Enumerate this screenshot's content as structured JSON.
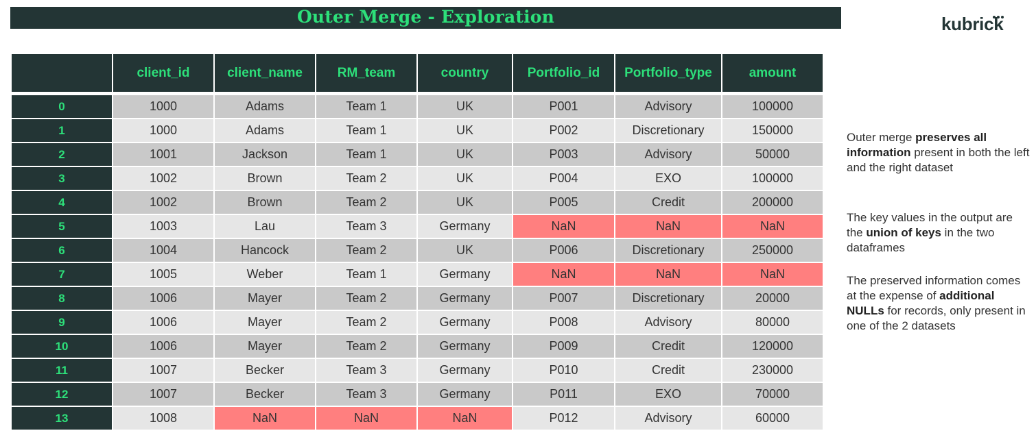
{
  "title": "Outer Merge - Exploration",
  "logo": {
    "text": "kubrick"
  },
  "colors": {
    "dark": "#233535",
    "accent": "#2de07a",
    "nan": "#ff7f7f",
    "row_dark": "#c9c9c9",
    "row_light": "#e6e6e6"
  },
  "table": {
    "columns": [
      "client_id",
      "client_name",
      "RM_team",
      "country",
      "Portfolio_id",
      "Portfolio_type",
      "amount"
    ],
    "rows": [
      {
        "index": "0",
        "cells": [
          "1000",
          "Adams",
          "Team 1",
          "UK",
          "P001",
          "Advisory",
          "100000"
        ]
      },
      {
        "index": "1",
        "cells": [
          "1000",
          "Adams",
          "Team 1",
          "UK",
          "P002",
          "Discretionary",
          "150000"
        ]
      },
      {
        "index": "2",
        "cells": [
          "1001",
          "Jackson",
          "Team 1",
          "UK",
          "P003",
          "Advisory",
          "50000"
        ]
      },
      {
        "index": "3",
        "cells": [
          "1002",
          "Brown",
          "Team 2",
          "UK",
          "P004",
          "EXO",
          "100000"
        ]
      },
      {
        "index": "4",
        "cells": [
          "1002",
          "Brown",
          "Team 2",
          "UK",
          "P005",
          "Credit",
          "200000"
        ]
      },
      {
        "index": "5",
        "cells": [
          "1003",
          "Lau",
          "Team 3",
          "Germany",
          "NaN",
          "NaN",
          "NaN"
        ]
      },
      {
        "index": "6",
        "cells": [
          "1004",
          "Hancock",
          "Team 2",
          "UK",
          "P006",
          "Discretionary",
          "250000"
        ]
      },
      {
        "index": "7",
        "cells": [
          "1005",
          "Weber",
          "Team 1",
          "Germany",
          "NaN",
          "NaN",
          "NaN"
        ]
      },
      {
        "index": "8",
        "cells": [
          "1006",
          "Mayer",
          "Team 2",
          "Germany",
          "P007",
          "Discretionary",
          "20000"
        ]
      },
      {
        "index": "9",
        "cells": [
          "1006",
          "Mayer",
          "Team 2",
          "Germany",
          "P008",
          "Advisory",
          "80000"
        ]
      },
      {
        "index": "10",
        "cells": [
          "1006",
          "Mayer",
          "Team 2",
          "Germany",
          "P009",
          "Credit",
          "120000"
        ]
      },
      {
        "index": "11",
        "cells": [
          "1007",
          "Becker",
          "Team 3",
          "Germany",
          "P010",
          "Credit",
          "230000"
        ]
      },
      {
        "index": "12",
        "cells": [
          "1007",
          "Becker",
          "Team 3",
          "Germany",
          "P011",
          "EXO",
          "70000"
        ]
      },
      {
        "index": "13",
        "cells": [
          "1008",
          "NaN",
          "NaN",
          "NaN",
          "P012",
          "Advisory",
          "60000"
        ]
      }
    ]
  },
  "notes": {
    "n1": {
      "a": "Outer merge ",
      "b": "preserves all information",
      "c": " present in both the left and the right dataset"
    },
    "n2": {
      "a": "The key values in the output are the ",
      "b": "union of keys",
      "c": " in the two dataframes"
    },
    "n3": {
      "a": "The preserved information comes at the expense of ",
      "b": "additional NULLs",
      "c": " for records, only present in one of the 2 datasets"
    }
  }
}
